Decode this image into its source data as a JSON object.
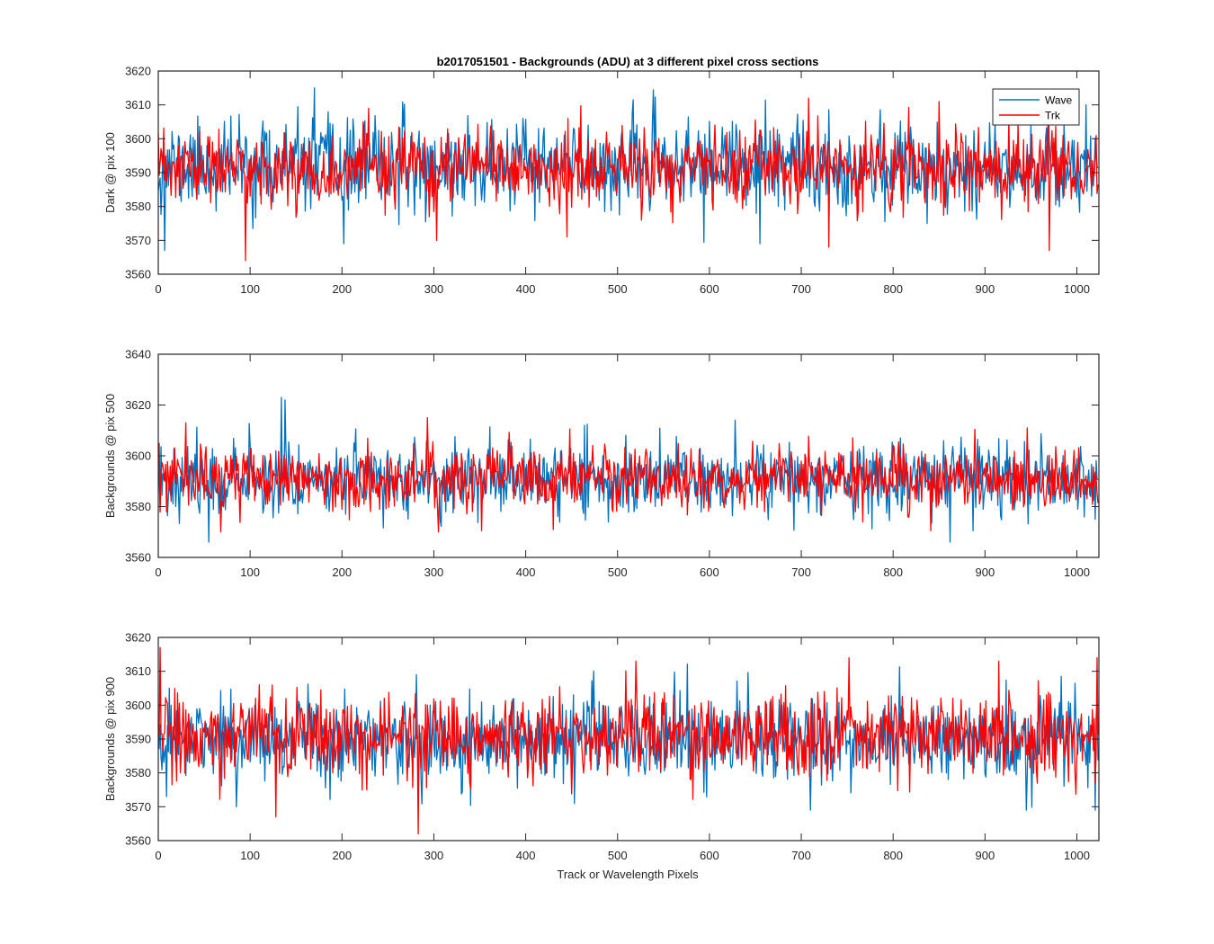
{
  "figure": {
    "title": "b2017051501 - Backgrounds (ADU) at 3 different pixel cross sections",
    "xlabel": "Track or Wavelength Pixels"
  },
  "colors": {
    "wave": "#0072BD",
    "trk": "#FF0000",
    "axis": "#262626",
    "background": "#FFFFFF"
  },
  "chart_data": [
    {
      "type": "line",
      "ylabel": "Dark @ pix 100",
      "xlim": [
        0,
        1024
      ],
      "ylim": [
        3560,
        3620
      ],
      "xticks": [
        0,
        100,
        200,
        300,
        400,
        500,
        600,
        700,
        800,
        900,
        1000
      ],
      "yticks": [
        3560,
        3570,
        3580,
        3590,
        3600,
        3610,
        3620
      ],
      "legend": {
        "location": "top-right",
        "entries": [
          "Wave",
          "Trk"
        ]
      },
      "series": [
        {
          "name": "Wave",
          "color": "#0072BD",
          "n_points": 1024,
          "mean": 3592,
          "noise_sd": 6.5,
          "seed": 11,
          "extremes": [
            [
              7,
              3567
            ],
            [
              170,
              3615
            ],
            [
              202,
              3569
            ],
            [
              300,
              3579
            ],
            [
              655,
              3569
            ],
            [
              900,
              3599
            ],
            [
              1010,
              3610
            ]
          ]
        },
        {
          "name": "Trk",
          "color": "#FF0000",
          "n_points": 1024,
          "mean": 3591,
          "noise_sd": 5.5,
          "seed": 23,
          "extremes": [
            [
              95,
              3564
            ],
            [
              303,
              3570
            ],
            [
              445,
              3571
            ],
            [
              708,
              3612
            ],
            [
              730,
              3568
            ],
            [
              850,
              3611
            ],
            [
              970,
              3567
            ]
          ]
        }
      ]
    },
    {
      "type": "line",
      "ylabel": "Backgrounds @ pix 500",
      "xlim": [
        0,
        1024
      ],
      "ylim": [
        3560,
        3640
      ],
      "xticks": [
        0,
        100,
        200,
        300,
        400,
        500,
        600,
        700,
        800,
        900,
        1000
      ],
      "yticks": [
        3560,
        3580,
        3600,
        3620,
        3640
      ],
      "series": [
        {
          "name": "Wave",
          "color": "#0072BD",
          "n_points": 1024,
          "mean": 3591,
          "noise_sd": 7.0,
          "seed": 37,
          "extremes": [
            [
              55,
              3566
            ],
            [
              134,
              3623
            ],
            [
              138,
              3622
            ],
            [
              464,
              3612
            ],
            [
              628,
              3614
            ],
            [
              862,
              3566
            ],
            [
              1020,
              3575
            ]
          ]
        },
        {
          "name": "Trk",
          "color": "#FF0000",
          "n_points": 1024,
          "mean": 3591,
          "noise_sd": 6.0,
          "seed": 53,
          "extremes": [
            [
              30,
              3613
            ],
            [
              68,
              3570
            ],
            [
              293,
              3615
            ],
            [
              305,
              3570
            ],
            [
              430,
              3571
            ],
            [
              767,
              3574
            ],
            [
              946,
              3611
            ]
          ]
        }
      ]
    },
    {
      "type": "line",
      "ylabel": "Backgrounds @ pix 900",
      "xlim": [
        0,
        1024
      ],
      "ylim": [
        3560,
        3620
      ],
      "xticks": [
        0,
        100,
        200,
        300,
        400,
        500,
        600,
        700,
        800,
        900,
        1000
      ],
      "yticks": [
        3560,
        3570,
        3580,
        3590,
        3600,
        3610,
        3620
      ],
      "series": [
        {
          "name": "Wave",
          "color": "#0072BD",
          "n_points": 1024,
          "mean": 3590,
          "noise_sd": 6.5,
          "seed": 71,
          "extremes": [
            [
              9,
              3573
            ],
            [
              85,
              3570
            ],
            [
              283,
              3572
            ],
            [
              710,
              3569
            ],
            [
              945,
              3569
            ],
            [
              1020,
              3569
            ]
          ]
        },
        {
          "name": "Trk",
          "color": "#FF0000",
          "n_points": 1024,
          "mean": 3591,
          "noise_sd": 6.0,
          "seed": 89,
          "extremes": [
            [
              2,
              3617
            ],
            [
              128,
              3567
            ],
            [
              283,
              3562
            ],
            [
              520,
              3613
            ],
            [
              752,
              3614
            ],
            [
              915,
              3613
            ],
            [
              1022,
              3614
            ]
          ]
        }
      ]
    }
  ]
}
